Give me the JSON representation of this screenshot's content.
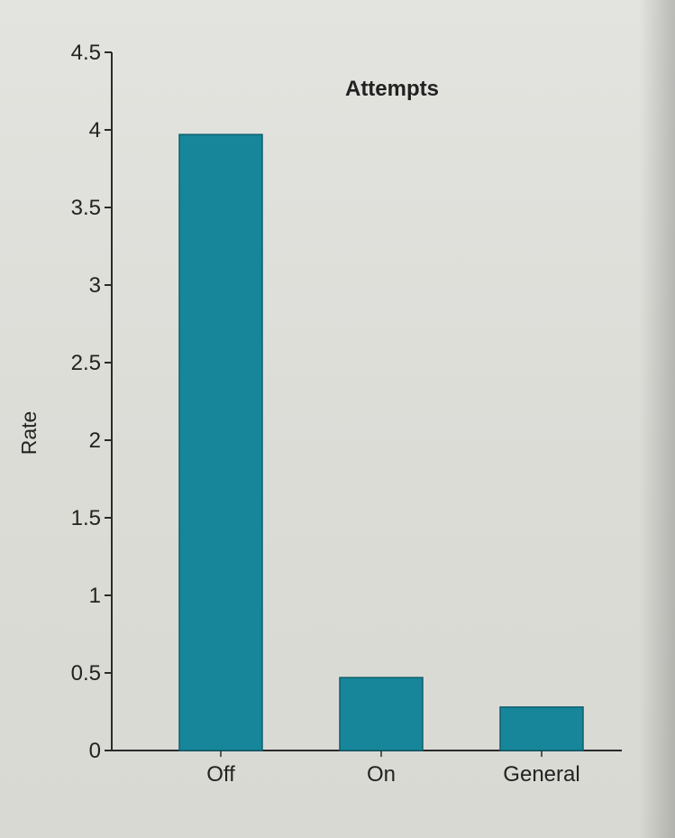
{
  "colors": {
    "bar": "#17869a",
    "bar_edge": "#0e5f6e",
    "axis": "#2a2a2a",
    "text": "#1f1f1f",
    "background": "#dededa"
  },
  "chart_data": {
    "type": "bar",
    "title": "Attempts",
    "xlabel": "",
    "ylabel": "Rate",
    "categories": [
      "Off",
      "On",
      "General"
    ],
    "values": [
      3.97,
      0.47,
      0.28
    ],
    "ylim": [
      0,
      4.5
    ],
    "yticks": [
      0,
      0.5,
      1,
      1.5,
      2,
      2.5,
      3,
      3.5,
      4,
      4.5
    ],
    "ytick_labels": [
      "0",
      "0.5",
      "1",
      "1.5",
      "2",
      "2.5",
      "3",
      "3.5",
      "4",
      "4.5"
    ],
    "grid": false,
    "legend": "none"
  }
}
